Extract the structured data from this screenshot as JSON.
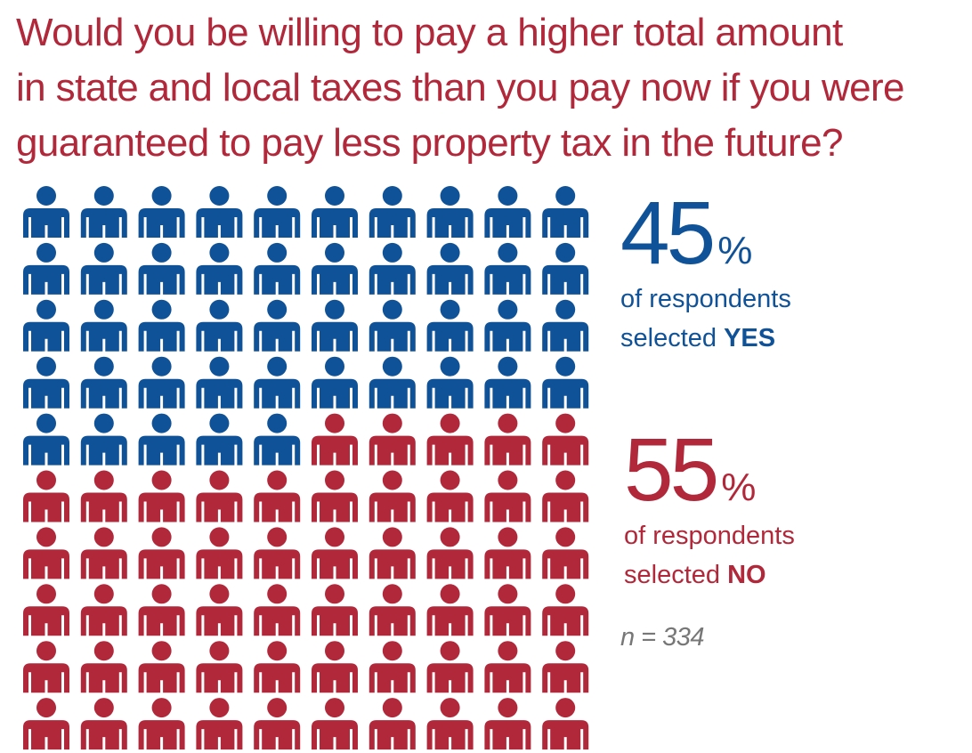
{
  "title": {
    "lines": [
      "Would you be willing to pay a higher total amount",
      "in state and local taxes than you pay now if you were",
      "guaranteed to pay less property tax in the future?"
    ]
  },
  "colors": {
    "yes": "#0f5298",
    "no": "#b1283a",
    "title": "#b1283a",
    "note": "#777777"
  },
  "icon_name": "person-icon",
  "chart_data": {
    "type": "icon-array",
    "total_icons": 100,
    "grid_columns": 10,
    "grid_rows": 10,
    "series": [
      {
        "name": "YES",
        "value": 45,
        "unit": "%",
        "label_prefix": "of respondents",
        "label_text": "selected",
        "label_emphasis": "YES"
      },
      {
        "name": "NO",
        "value": 55,
        "unit": "%",
        "label_prefix": "of respondents",
        "label_text": "selected",
        "label_emphasis": "NO"
      }
    ],
    "sample_size": "n = 334"
  }
}
